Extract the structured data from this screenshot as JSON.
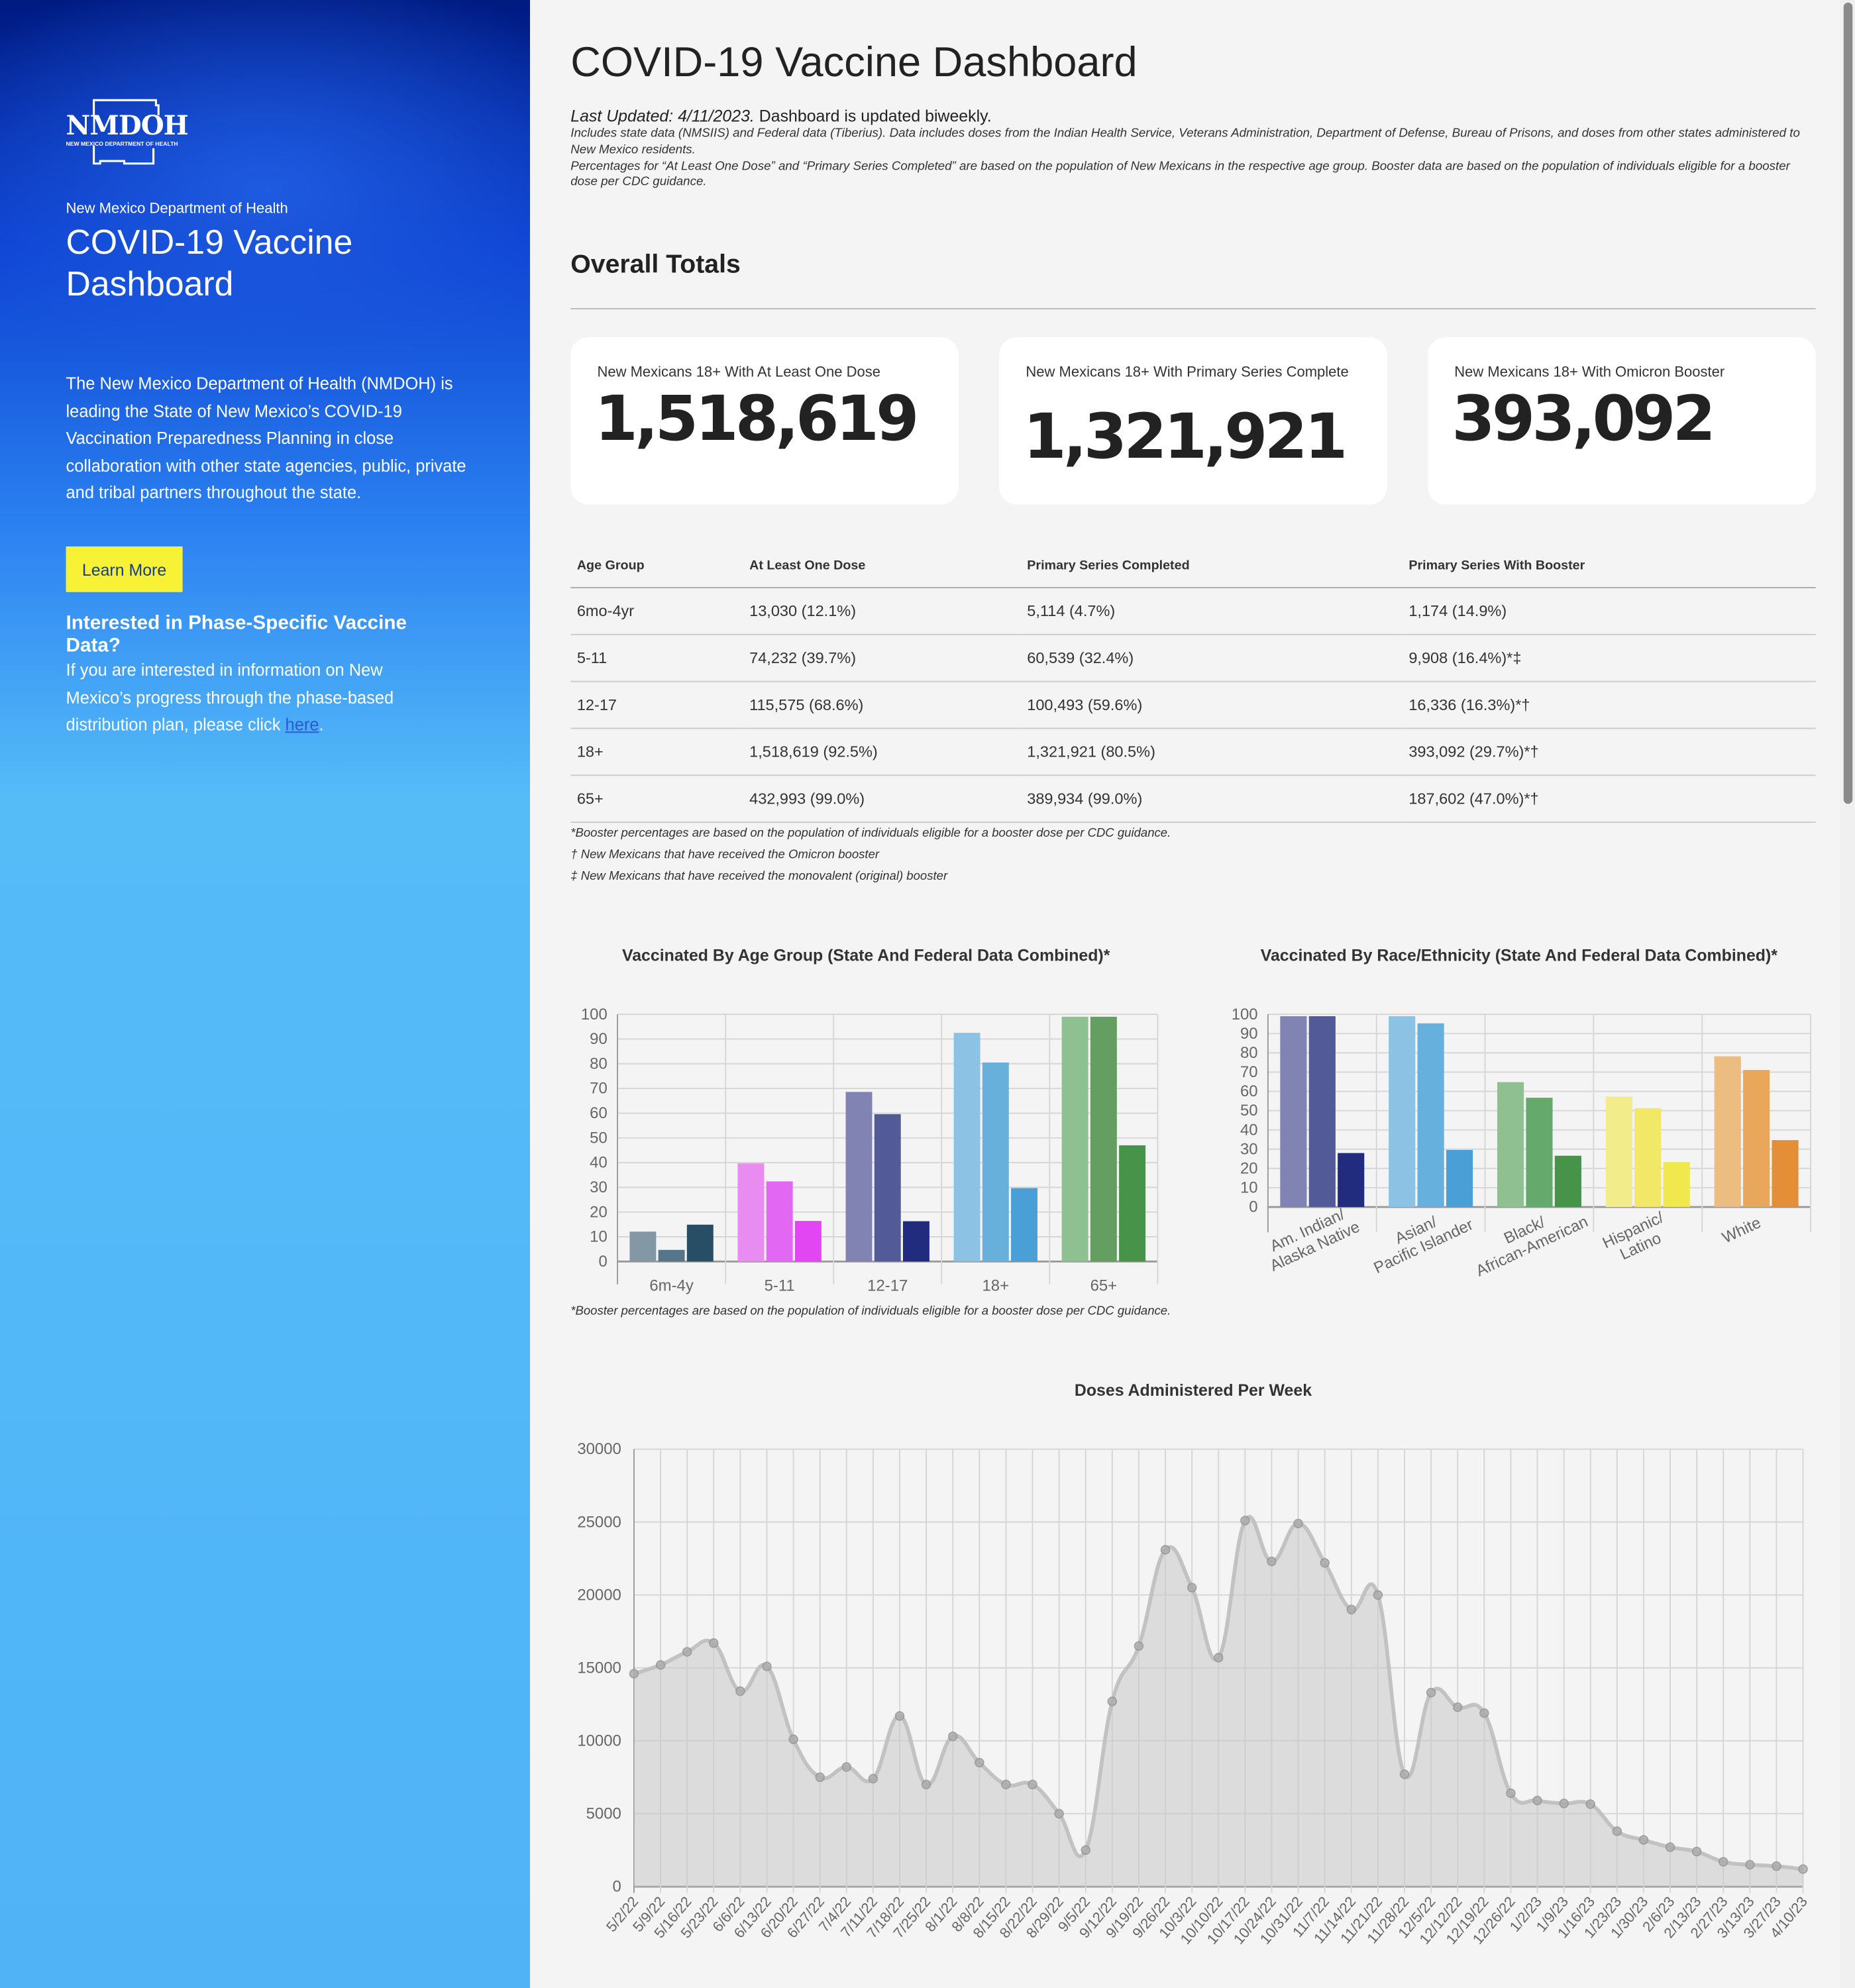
{
  "sidebar": {
    "logo_text": "NMDOH",
    "logo_sub": "NEW MEXICO DEPARTMENT OF HEALTH",
    "org": "New Mexico Department of Health",
    "title": "COVID-19 Vaccine Dashboard",
    "description": "The New Mexico Department of Health (NMDOH) is leading the State of New Mexico’s COVID-19 Vaccination Preparedness Planning in close collaboration with other state agencies, public, private and tribal partners throughout the state.",
    "learn_more": "Learn More",
    "phase_heading": "Interested in Phase-Specific Vaccine Data?",
    "phase_text": "If you are interested in information on New Mexico’s progress through the phase-based distribution plan, please click ",
    "phase_link": "here",
    "phase_end": "."
  },
  "header": {
    "title": "COVID-19 Vaccine Dashboard",
    "last_updated_label": "Last Updated: 4/11/2023.",
    "update_freq": " Dashboard is updated biweekly.",
    "note1": "Includes state data (NMSIIS) and Federal data (Tiberius). Data includes doses from the Indian Health Service, Veterans Administration, Department of Defense, Bureau of Prisons, and doses from other states administered to New Mexico residents.",
    "note2": "Percentages for “At Least One Dose” and “Primary Series Completed” are based on the population of New Mexicans in the respective age group. Booster data are based on the population of individuals eligible for a booster dose per CDC guidance."
  },
  "totals": {
    "title": "Overall Totals",
    "cards": [
      {
        "label": "New Mexicans 18+ With At Least One Dose",
        "value": "1,518,619"
      },
      {
        "label": "New Mexicans 18+ With Primary Series Complete",
        "value": "1,321,921"
      },
      {
        "label": "New Mexicans 18+ With Omicron Booster",
        "value": "393,092"
      }
    ]
  },
  "table": {
    "headers": [
      "Age Group",
      "At Least One Dose",
      "Primary Series Completed",
      "Primary Series With Booster"
    ],
    "rows": [
      [
        "6mo-4yr",
        "13,030 (12.1%)",
        "5,114 (4.7%)",
        "1,174 (14.9%)"
      ],
      [
        "5-11",
        "74,232 (39.7%)",
        "60,539 (32.4%)",
        "9,908 (16.4%)*‡"
      ],
      [
        "12-17",
        "115,575 (68.6%)",
        "100,493 (59.6%)",
        "16,336 (16.3%)*†"
      ],
      [
        "18+",
        "1,518,619 (92.5%)",
        "1,321,921 (80.5%)",
        "393,092 (29.7%)*†"
      ],
      [
        "65+",
        "432,993 (99.0%)",
        "389,934 (99.0%)",
        "187,602 (47.0%)*†"
      ]
    ],
    "footnotes": [
      "*Booster percentages are based on the population of individuals eligible for a booster dose per CDC guidance.",
      "† New Mexicans that have received the Omicron booster",
      "‡ New Mexicans that have received the monovalent (original) booster"
    ]
  },
  "chart_footnote": "*Booster percentages are based on the population of individuals eligible for a booster dose per CDC guidance.",
  "chart_data": [
    {
      "type": "bar",
      "title": "Vaccinated By Age Group (State And Federal Data Combined)*",
      "categories": [
        "6m-4y",
        "5-11",
        "12-17",
        "18+",
        "65+"
      ],
      "series": [
        {
          "name": "At Least One Dose",
          "values": [
            12.1,
            39.7,
            68.6,
            92.5,
            99.0
          ]
        },
        {
          "name": "Primary Series Completed",
          "values": [
            4.7,
            32.4,
            59.6,
            80.5,
            99.0
          ]
        },
        {
          "name": "Primary Series With Booster",
          "values": [
            14.9,
            16.4,
            16.3,
            29.7,
            47.0
          ]
        }
      ],
      "colors": [
        [
          "#8397a4",
          "#54758a",
          "#284e66"
        ],
        [
          "#e88cf2",
          "#e267f2",
          "#e245f2"
        ],
        [
          "#8184b2",
          "#525a98",
          "#222c7e"
        ],
        [
          "#8cc2e3",
          "#68b0dc",
          "#4a9fd6"
        ],
        [
          "#8fc092",
          "#659e61",
          "#48934a"
        ]
      ],
      "ylim": [
        0,
        100
      ],
      "yticks": [
        0,
        10,
        20,
        30,
        40,
        50,
        60,
        70,
        80,
        90,
        100
      ],
      "grid": true,
      "legend": "none"
    },
    {
      "type": "bar",
      "title": "Vaccinated By Race/Ethnicity (State And Federal Data Combined)*",
      "categories": [
        [
          "Am. Indian/",
          "Alaska Native"
        ],
        [
          "Asian/",
          "Pacific Islander"
        ],
        [
          "Black/",
          "African-American"
        ],
        [
          "Hispanic/",
          "Latino"
        ],
        [
          "White"
        ]
      ],
      "series": [
        {
          "name": "At Least One Dose",
          "values": [
            99,
            99,
            64.8,
            57.3,
            78.2
          ]
        },
        {
          "name": "Primary Series Completed",
          "values": [
            99,
            95.3,
            56.7,
            51.3,
            71.1
          ]
        },
        {
          "name": "Primary Series With Booster",
          "values": [
            28,
            29.6,
            26.6,
            23.3,
            34.7
          ]
        }
      ],
      "colors": [
        [
          "#8184b2",
          "#525a98",
          "#222c7e"
        ],
        [
          "#8cc2e3",
          "#65b0dd",
          "#4a9fd6"
        ],
        [
          "#8fc092",
          "#65a96c",
          "#48934a"
        ],
        [
          "#f2ec8a",
          "#f0e866",
          "#f0e84c"
        ],
        [
          "#ecbd80",
          "#e8a75a",
          "#e48e38"
        ]
      ],
      "ylim": [
        0,
        100
      ],
      "yticks": [
        0,
        10,
        20,
        30,
        40,
        50,
        60,
        70,
        80,
        90,
        100
      ],
      "grid": true,
      "legend": "none"
    },
    {
      "type": "area",
      "title": "Doses Administered Per Week",
      "x": [
        "5/2/22",
        "5/9/22",
        "5/16/22",
        "5/23/22",
        "6/6/22",
        "6/13/22",
        "6/20/22",
        "6/27/22",
        "7/4/22",
        "7/11/22",
        "7/18/22",
        "7/25/22",
        "8/1/22",
        "8/8/22",
        "8/15/22",
        "8/22/22",
        "8/29/22",
        "9/5/22",
        "9/12/22",
        "9/19/22",
        "9/26/22",
        "10/3/22",
        "10/10/22",
        "10/17/22",
        "10/24/22",
        "10/31/22",
        "11/7/22",
        "11/14/22",
        "11/21/22",
        "11/28/22",
        "12/5/22",
        "12/12/22",
        "12/19/22",
        "12/26/22",
        "1/2/23",
        "1/9/23",
        "1/16/23",
        "1/23/23",
        "1/30/23",
        "2/6/23",
        "2/13/23",
        "2/27/23",
        "3/13/23",
        "3/27/23",
        "4/10/23"
      ],
      "y": [
        14600,
        15200,
        16100,
        16700,
        13400,
        15100,
        10100,
        7500,
        8200,
        7400,
        11700,
        7000,
        10300,
        8500,
        7000,
        7000,
        5000,
        2500,
        12700,
        16500,
        23100,
        20500,
        15700,
        25100,
        22300,
        24900,
        22200,
        19000,
        20000,
        7700,
        13300,
        12300,
        11900,
        6400,
        5900,
        5700,
        5650,
        3800,
        3200,
        2700,
        2400,
        1700,
        1500,
        1400,
        1200
      ],
      "ylim": [
        0,
        30000
      ],
      "yticks": [
        0,
        5000,
        10000,
        15000,
        20000,
        25000,
        30000
      ],
      "grid": true,
      "color": "#c8c8c8",
      "legend": "none"
    }
  ]
}
